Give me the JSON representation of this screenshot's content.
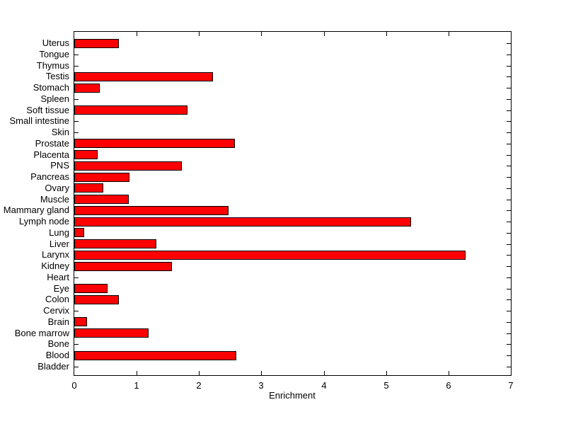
{
  "chart_data": {
    "type": "bar",
    "orientation": "horizontal",
    "title": "",
    "xlabel": "Enrichment",
    "ylabel": "",
    "xlim": [
      0,
      7
    ],
    "xticks": [
      0,
      1,
      2,
      3,
      4,
      5,
      6,
      7
    ],
    "grid": false,
    "legend": null,
    "bar_color": "#ff0000",
    "bar_edge_color": "#000000",
    "axis_color": "#000000",
    "background_color": "#ffffff",
    "categories": [
      "Uterus",
      "Tongue",
      "Thymus",
      "Testis",
      "Stomach",
      "Spleen",
      "Soft tissue",
      "Small intestine",
      "Skin",
      "Prostate",
      "Placenta",
      "PNS",
      "Pancreas",
      "Ovary",
      "Muscle",
      "Mammary gland",
      "Lymph node",
      "Lung",
      "Liver",
      "Larynx",
      "Kidney",
      "Heart",
      "Eye",
      "Colon",
      "Cervix",
      "Brain",
      "Bone marrow",
      "Bone",
      "Blood",
      "Bladder"
    ],
    "values": [
      0.72,
      0,
      0,
      2.22,
      0.41,
      0,
      1.82,
      0,
      0,
      2.58,
      0.38,
      1.72,
      0.88,
      0.46,
      0.87,
      2.47,
      5.4,
      0.16,
      1.32,
      6.27,
      1.56,
      0,
      0.53,
      0.72,
      0,
      0.2,
      1.19,
      0,
      2.6,
      0
    ]
  }
}
